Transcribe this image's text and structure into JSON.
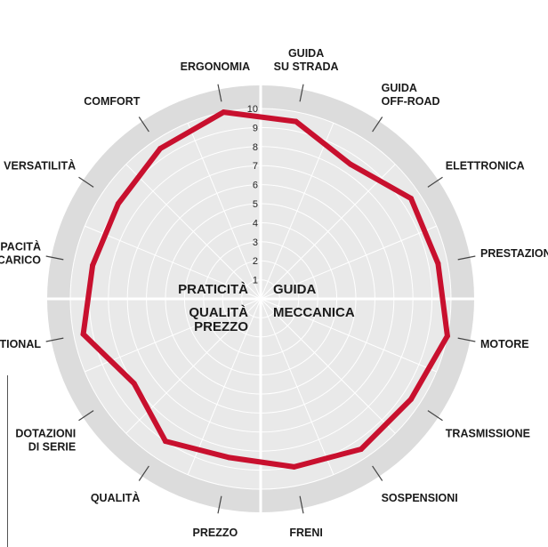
{
  "chart_data": {
    "type": "radar",
    "ylim": [
      0,
      10
    ],
    "ticks": [
      "1",
      "2",
      "3",
      "4",
      "5",
      "6",
      "7",
      "8",
      "9",
      "10"
    ],
    "groups": [
      {
        "lines": [
          "PRATICITÀ"
        ]
      },
      {
        "lines": [
          "GUIDA"
        ]
      },
      {
        "lines": [
          "QUALITÀ",
          "PREZZO"
        ]
      },
      {
        "lines": [
          "MECCANICA"
        ]
      }
    ],
    "axes": [
      {
        "lines": [
          "GUIDA",
          "SU STRADA"
        ],
        "value": 9.5
      },
      {
        "lines": [
          "GUIDA",
          "OFF-ROAD"
        ],
        "value": 8.5
      },
      {
        "lines": [
          "ELETTRONICA"
        ],
        "value": 9.5
      },
      {
        "lines": [
          "PRESTAZIONI"
        ],
        "value": 9.5
      },
      {
        "lines": [
          "MOTORE"
        ],
        "value": 10
      },
      {
        "lines": [
          "TRASMISSIONE"
        ],
        "value": 9.5
      },
      {
        "lines": [
          "SOSPENSIONI"
        ],
        "value": 9.5
      },
      {
        "lines": [
          "FRENI"
        ],
        "value": 9
      },
      {
        "lines": [
          "PREZZO"
        ],
        "value": 8.5
      },
      {
        "lines": [
          "QUALITÀ"
        ],
        "value": 9
      },
      {
        "lines": [
          "DOTAZIONI",
          "DI SERIE"
        ],
        "value": 8
      },
      {
        "lines": [
          "OPTIONAL"
        ],
        "value": 9.5
      },
      {
        "lines": [
          "CAPACITÀ",
          "DI CARICO"
        ],
        "value": 9
      },
      {
        "lines": [
          "VERSATILITÀ"
        ],
        "value": 9
      },
      {
        "lines": [
          "COMFORT"
        ],
        "value": 9.5
      },
      {
        "lines": [
          "ERGONOMIA"
        ],
        "value": 10
      }
    ],
    "colors": {
      "series": "#c8102e",
      "outer_ring": "#dcdcdc",
      "inner_disc": "#e9e9e9",
      "grid": "#ffffff",
      "leader": "#444444"
    }
  }
}
